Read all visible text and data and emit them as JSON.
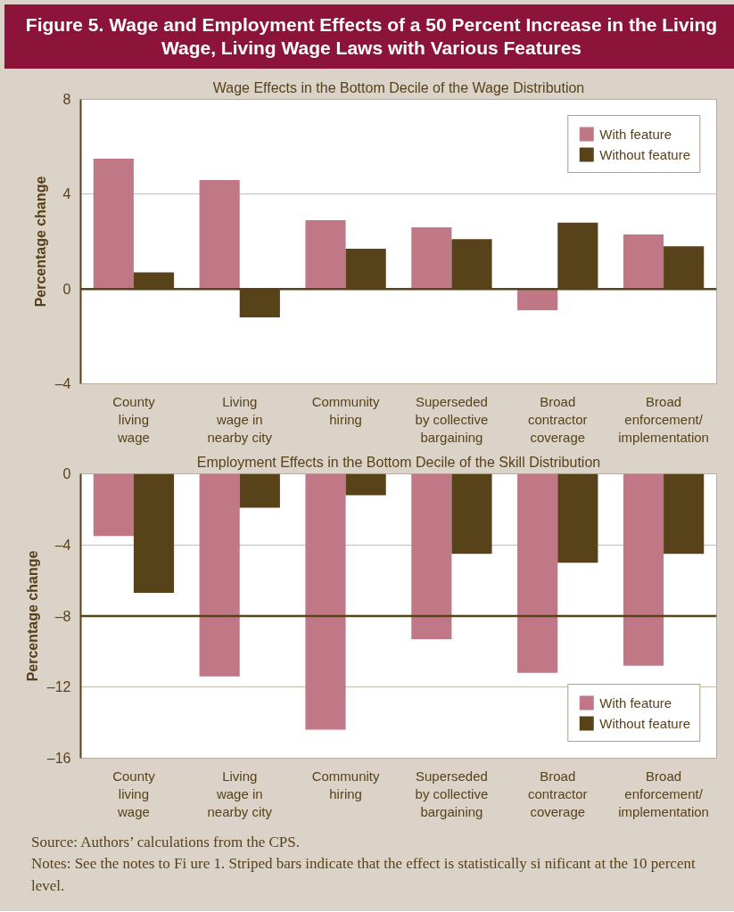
{
  "chart_data": [
    {
      "type": "bar",
      "title": "Figure 5. Wage and Employment Effects of a 50 Percent Increase in the Living Wage, Living Wage Laws with Various Features",
      "subtitle": "Wage Effects in the Bottom Decile of the Wage Distribution",
      "ylabel": "Percentage change",
      "categories": [
        "County\nliving\nwage",
        "Living\nwage in\nnearby city",
        "Community\nhiring",
        "Superseded\nby collective\nbargaining",
        "Broad\ncontractor\ncoverage",
        "Broad\nenforcement/\nimplementation"
      ],
      "series": [
        {
          "name": "With feature",
          "color": "#c07786",
          "values": [
            5.5,
            4.6,
            2.9,
            2.6,
            -0.9,
            2.3
          ]
        },
        {
          "name": "Without feature",
          "color": "#58421a",
          "values": [
            0.7,
            -1.2,
            1.7,
            2.1,
            2.8,
            1.8
          ]
        }
      ],
      "ylim": [
        -4,
        8
      ],
      "yticks": [
        {
          "value": -4,
          "label": "–4"
        },
        0,
        4,
        8
      ],
      "grid": "y",
      "legend": "top right",
      "ref_lines": [
        {
          "axis": "y",
          "value": 0,
          "color": "#58421a"
        }
      ]
    },
    {
      "type": "bar",
      "title": "Employment Effects in the Bottom Decile of the Skill Distribution",
      "ylabel": "Percentage change",
      "categories": [
        "County\nliving\nwage",
        "Living\nwage in\nnearby city",
        "Community\nhiring",
        "Superseded\nby collective\nbargaining",
        "Broad\ncontractor\ncoverage",
        "Broad\nenforcement/\nimplementation"
      ],
      "series": [
        {
          "name": "With feature",
          "color": "#c07786",
          "values": [
            -3.5,
            -11.4,
            -14.4,
            -9.3,
            -11.2,
            -10.8
          ]
        },
        {
          "name": "Without feature",
          "color": "#58421a",
          "values": [
            -6.7,
            -1.9,
            -1.2,
            -4.5,
            -5.0,
            -4.5
          ]
        }
      ],
      "ylim": [
        -16,
        0
      ],
      "yticks": [
        {
          "value": -16,
          "label": "–16"
        },
        {
          "value": -12,
          "label": "–12"
        },
        {
          "value": -8,
          "label": "–8"
        },
        {
          "value": -4,
          "label": "–4"
        },
        0
      ],
      "grid": "y",
      "legend": "bottom right",
      "ref_lines": [
        {
          "axis": "y",
          "value": -8,
          "color": "#58421a"
        }
      ],
      "annotations": [
        "Source: Authors’ calculations from the CPS.",
        "Notes: See the notes to Fi  ure 1. Striped bars indicate that the effect is statistically si  nificant at the 10 percent level."
      ]
    }
  ]
}
